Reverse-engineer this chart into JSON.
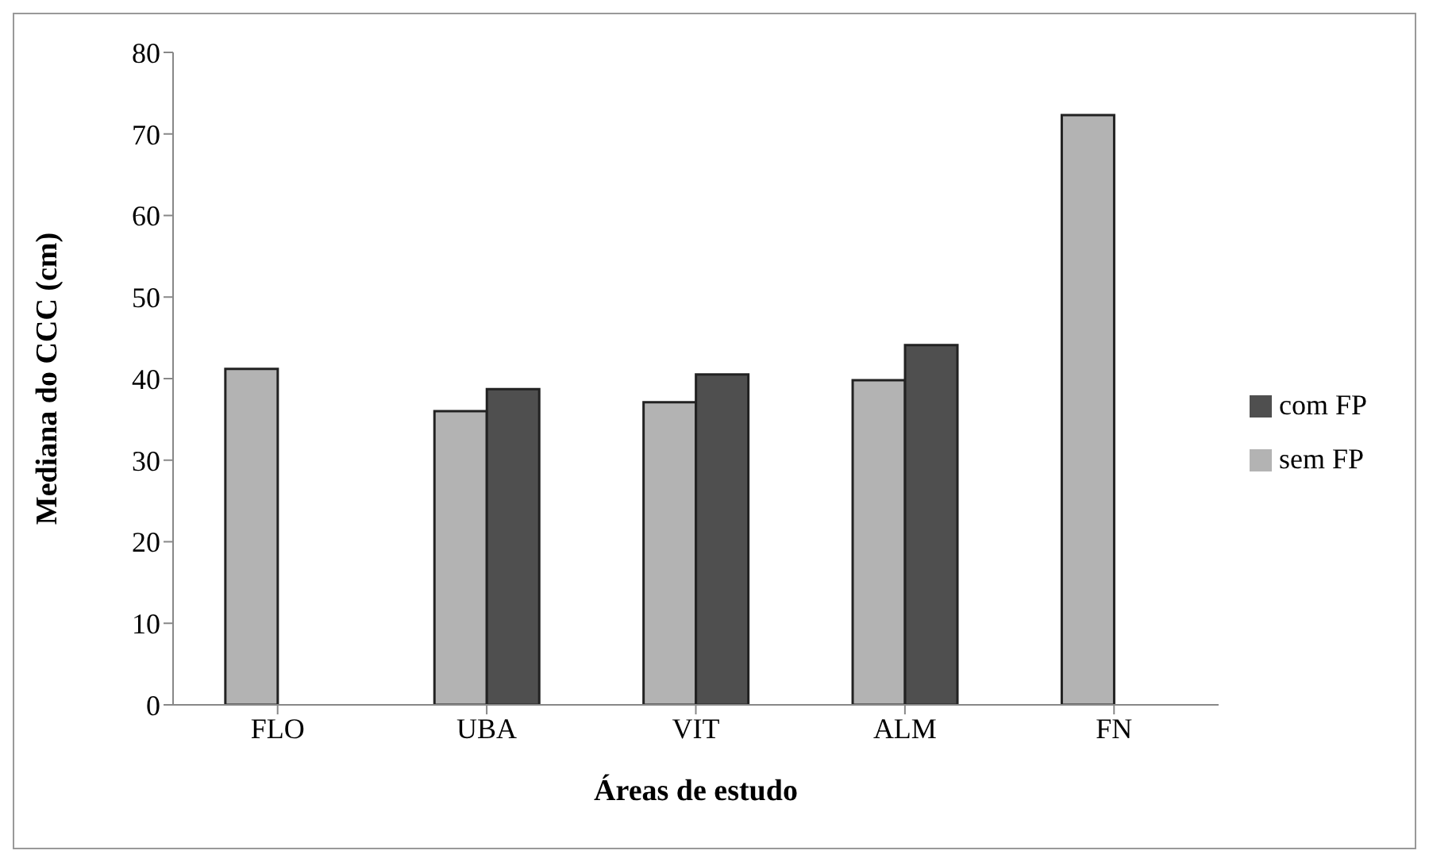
{
  "chart_data": {
    "type": "bar",
    "xlabel": "Áreas de estudo",
    "ylabel": "Mediana do CCC (cm)",
    "categories": [
      "FLO",
      "UBA",
      "VIT",
      "ALM",
      "FN"
    ],
    "series": [
      {
        "name": "sem FP",
        "color": "#b3b3b3",
        "values": [
          41.2,
          36.0,
          37.1,
          39.8,
          72.3
        ]
      },
      {
        "name": "com FP",
        "color": "#4f4f4f",
        "values": [
          null,
          38.7,
          40.5,
          44.1,
          null
        ]
      }
    ],
    "ylim": [
      0,
      80
    ],
    "yticks": [
      0,
      10,
      20,
      30,
      40,
      50,
      60,
      70,
      80
    ],
    "grid": false,
    "legend": "right"
  }
}
